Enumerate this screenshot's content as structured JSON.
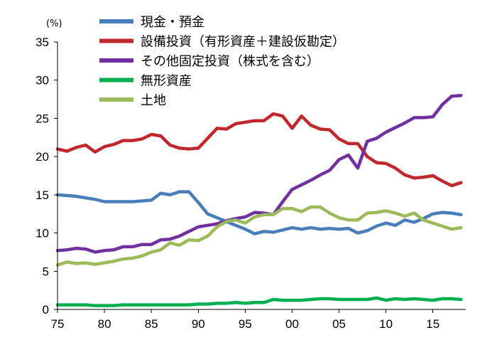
{
  "chart_data": {
    "type": "line",
    "title": "",
    "xlabel": "",
    "ylabel": "",
    "unit_label": "(%)",
    "x": [
      1975,
      1976,
      1977,
      1978,
      1979,
      1980,
      1981,
      1982,
      1983,
      1984,
      1985,
      1986,
      1987,
      1988,
      1989,
      1990,
      1991,
      1992,
      1993,
      1994,
      1995,
      1996,
      1997,
      1998,
      1999,
      2000,
      2001,
      2002,
      2003,
      2004,
      2005,
      2006,
      2007,
      2008,
      2009,
      2010,
      2011,
      2012,
      2013,
      2014,
      2015,
      2016,
      2017,
      2018
    ],
    "x_ticks": [
      1975,
      1980,
      1985,
      1990,
      1995,
      2000,
      2005,
      2010,
      2015
    ],
    "x_tick_labels": [
      "75",
      "80",
      "85",
      "90",
      "95",
      "00",
      "05",
      "10",
      "15"
    ],
    "xlim": [
      1975,
      2018.5
    ],
    "ylim": [
      0,
      35
    ],
    "y_ticks": [
      0,
      5,
      10,
      15,
      20,
      25,
      30,
      35
    ],
    "y_tick_labels": [
      "0",
      "5",
      "10",
      "15",
      "20",
      "25",
      "30",
      "35"
    ],
    "grid": false,
    "legend_position": "top-center",
    "series": [
      {
        "name": "現金・預金",
        "color": "#4a7ebb",
        "values": [
          15.0,
          14.9,
          14.8,
          14.6,
          14.4,
          14.1,
          14.1,
          14.1,
          14.1,
          14.2,
          14.3,
          15.2,
          15.0,
          15.4,
          15.4,
          14.0,
          12.5,
          12.0,
          11.5,
          11.0,
          10.5,
          9.9,
          10.2,
          10.1,
          10.4,
          10.7,
          10.5,
          10.7,
          10.5,
          10.6,
          10.5,
          10.6,
          10.0,
          10.3,
          10.9,
          11.3,
          11.0,
          11.7,
          11.4,
          11.9,
          12.5,
          12.7,
          12.6,
          12.4
        ]
      },
      {
        "name": "設備投資（有形資産＋建設仮勘定）",
        "color": "#c0282d",
        "values": [
          21.0,
          20.7,
          21.2,
          21.5,
          20.6,
          21.3,
          21.6,
          22.1,
          22.1,
          22.3,
          22.9,
          22.7,
          21.5,
          21.1,
          21.0,
          21.1,
          22.4,
          23.7,
          23.6,
          24.3,
          24.5,
          24.7,
          24.7,
          25.6,
          25.3,
          23.7,
          25.3,
          24.1,
          23.6,
          23.5,
          22.3,
          21.7,
          21.7,
          20.0,
          19.2,
          19.1,
          18.5,
          17.6,
          17.2,
          17.3,
          17.5,
          16.8,
          16.2,
          16.6
        ]
      },
      {
        "name": "その他固定投資（株式を含む）",
        "color": "#7030a0",
        "values": [
          7.7,
          7.8,
          8.0,
          7.9,
          7.5,
          7.7,
          7.8,
          8.2,
          8.2,
          8.5,
          8.5,
          9.1,
          9.2,
          9.6,
          10.2,
          10.8,
          11.0,
          11.2,
          11.6,
          11.9,
          12.1,
          12.7,
          12.6,
          12.4,
          14.1,
          15.7,
          16.3,
          16.9,
          17.6,
          18.2,
          19.6,
          20.2,
          18.5,
          22.0,
          22.4,
          23.2,
          23.8,
          24.4,
          25.1,
          25.1,
          25.2,
          26.8,
          27.9,
          28.0
        ]
      },
      {
        "name": "無形資産",
        "color": "#00b050",
        "values": [
          0.6,
          0.6,
          0.6,
          0.6,
          0.5,
          0.5,
          0.5,
          0.6,
          0.6,
          0.6,
          0.6,
          0.6,
          0.6,
          0.6,
          0.6,
          0.7,
          0.7,
          0.8,
          0.8,
          0.9,
          0.8,
          0.9,
          0.9,
          1.3,
          1.2,
          1.2,
          1.2,
          1.3,
          1.4,
          1.4,
          1.3,
          1.3,
          1.3,
          1.3,
          1.5,
          1.2,
          1.4,
          1.3,
          1.4,
          1.3,
          1.2,
          1.4,
          1.4,
          1.3
        ]
      },
      {
        "name": "土地",
        "color": "#9bbb59",
        "values": [
          5.8,
          6.2,
          6.0,
          6.1,
          5.9,
          6.1,
          6.3,
          6.6,
          6.7,
          7.0,
          7.5,
          7.8,
          8.7,
          8.4,
          9.1,
          9.0,
          9.6,
          10.8,
          11.5,
          11.7,
          11.3,
          12.1,
          12.4,
          12.4,
          13.2,
          13.2,
          12.8,
          13.4,
          13.4,
          12.6,
          12.0,
          11.7,
          11.7,
          12.6,
          12.7,
          12.9,
          12.6,
          12.2,
          12.6,
          11.7,
          11.3,
          10.9,
          10.5,
          10.7
        ]
      }
    ]
  }
}
